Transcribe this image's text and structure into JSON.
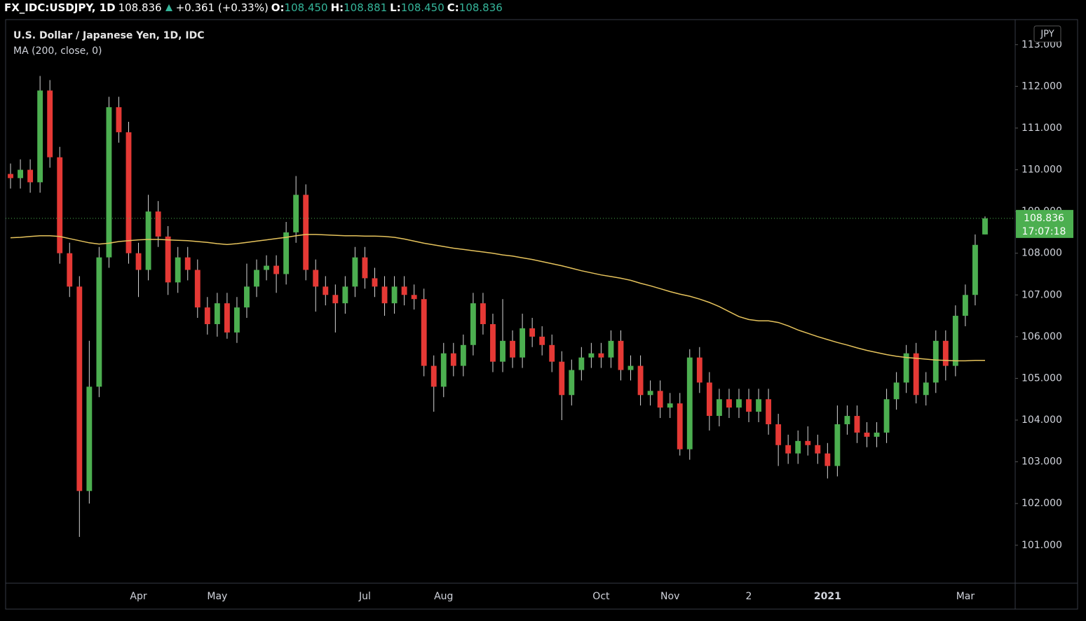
{
  "header": {
    "symbol": "FX_IDC:USDJPY, 1D",
    "last": "108.836",
    "change": "+0.361 (+0.33%)",
    "o_label": "O:",
    "o": "108.450",
    "h_label": "H:",
    "h": "108.881",
    "l_label": "L:",
    "l": "108.450",
    "c_label": "C:",
    "c": "108.836"
  },
  "chart_data": {
    "type": "candlestick",
    "title": "U.S. Dollar / Japanese Yen, 1D, IDC",
    "currency": "JPY",
    "categories": [
      null,
      null,
      null,
      null,
      null,
      null,
      null,
      null,
      null,
      null,
      null,
      null,
      null,
      "Apr",
      null,
      null,
      null,
      null,
      null,
      null,
      null,
      "May",
      null,
      null,
      null,
      null,
      null,
      null,
      null,
      null,
      null,
      null,
      null,
      null,
      null,
      null,
      "Jul",
      null,
      null,
      null,
      null,
      null,
      null,
      null,
      "Aug",
      null,
      null,
      null,
      null,
      null,
      null,
      null,
      null,
      null,
      null,
      null,
      null,
      null,
      null,
      null,
      "Oct",
      null,
      null,
      null,
      null,
      null,
      null,
      "Nov",
      null,
      null,
      null,
      null,
      null,
      null,
      null,
      "2",
      null,
      null,
      null,
      null,
      null,
      null,
      null,
      "2021",
      null,
      null,
      null,
      null,
      null,
      null,
      null,
      null,
      null,
      null,
      null,
      null,
      null,
      "Mar",
      null,
      null
    ],
    "open": [
      109.9,
      109.8,
      110.0,
      109.7,
      111.9,
      110.3,
      108.0,
      107.2,
      102.3,
      104.8,
      107.9,
      111.5,
      110.9,
      108.0,
      107.6,
      109.0,
      108.4,
      107.3,
      107.9,
      107.6,
      106.7,
      106.3,
      106.8,
      106.1,
      106.7,
      107.2,
      107.6,
      107.7,
      107.5,
      108.5,
      109.4,
      107.6,
      107.2,
      107.0,
      106.8,
      107.2,
      107.9,
      107.4,
      107.2,
      106.8,
      107.2,
      107.0,
      106.9,
      105.3,
      104.8,
      105.6,
      105.3,
      105.8,
      106.8,
      106.3,
      105.4,
      105.9,
      105.5,
      106.2,
      106.0,
      105.8,
      105.4,
      104.6,
      105.2,
      105.5,
      105.6,
      105.5,
      105.9,
      105.2,
      105.3,
      104.6,
      104.7,
      104.3,
      104.4,
      103.3,
      105.5,
      104.9,
      104.1,
      104.5,
      104.3,
      104.5,
      104.2,
      104.5,
      103.9,
      103.4,
      103.2,
      103.5,
      103.4,
      103.2,
      102.9,
      103.9,
      104.1,
      103.7,
      103.6,
      103.7,
      104.5,
      104.9,
      105.6,
      104.6,
      104.9,
      105.9,
      105.3,
      106.5,
      107.0,
      108.45
    ],
    "high": [
      110.15,
      110.25,
      110.25,
      112.25,
      112.15,
      110.55,
      108.25,
      107.45,
      105.9,
      108.15,
      111.75,
      111.75,
      111.15,
      108.25,
      109.4,
      109.25,
      108.65,
      108.15,
      108.15,
      107.85,
      106.95,
      107.05,
      107.05,
      106.95,
      107.75,
      107.85,
      107.95,
      107.95,
      108.75,
      109.85,
      109.65,
      107.85,
      107.45,
      107.25,
      107.45,
      108.15,
      108.15,
      107.65,
      107.45,
      107.45,
      107.45,
      107.25,
      107.15,
      105.55,
      105.85,
      105.85,
      106.05,
      107.05,
      107.05,
      106.55,
      106.9,
      106.15,
      106.55,
      106.45,
      106.25,
      106.05,
      105.65,
      105.45,
      105.75,
      105.85,
      105.85,
      106.15,
      106.15,
      105.55,
      105.55,
      104.95,
      104.95,
      104.65,
      104.65,
      105.7,
      105.75,
      105.15,
      104.75,
      104.75,
      104.75,
      104.75,
      104.75,
      104.75,
      104.15,
      103.65,
      103.75,
      103.85,
      103.65,
      103.45,
      104.35,
      104.35,
      104.35,
      103.95,
      103.95,
      104.75,
      105.15,
      105.8,
      105.85,
      105.15,
      106.15,
      106.15,
      106.75,
      107.25,
      108.45,
      108.881
    ],
    "low": [
      109.55,
      109.55,
      109.45,
      109.45,
      110.05,
      107.75,
      106.95,
      101.2,
      102.0,
      104.55,
      107.65,
      110.65,
      107.75,
      106.95,
      107.35,
      108.15,
      107.0,
      107.05,
      107.35,
      106.45,
      106.05,
      106.0,
      105.95,
      105.85,
      106.45,
      106.95,
      107.35,
      107.05,
      107.25,
      108.25,
      107.35,
      106.6,
      106.75,
      106.1,
      106.55,
      106.95,
      107.15,
      106.95,
      106.5,
      106.55,
      106.75,
      106.65,
      105.05,
      104.2,
      104.55,
      105.05,
      105.05,
      105.55,
      106.05,
      105.15,
      105.15,
      105.25,
      105.25,
      105.75,
      105.55,
      105.15,
      104.0,
      104.35,
      104.95,
      105.25,
      105.25,
      105.25,
      104.95,
      104.95,
      104.35,
      104.35,
      104.05,
      104.05,
      103.15,
      103.05,
      104.65,
      103.75,
      103.85,
      104.05,
      104.05,
      103.95,
      103.95,
      103.65,
      102.9,
      102.95,
      102.95,
      103.15,
      102.95,
      102.6,
      102.65,
      103.65,
      103.45,
      103.35,
      103.35,
      103.45,
      104.25,
      104.65,
      104.4,
      104.35,
      104.65,
      104.95,
      105.05,
      106.25,
      106.75,
      108.45
    ],
    "close": [
      109.8,
      110.0,
      109.7,
      111.9,
      110.3,
      108.0,
      107.2,
      102.3,
      104.8,
      107.9,
      111.5,
      110.9,
      108.0,
      107.6,
      109.0,
      108.4,
      107.3,
      107.9,
      107.6,
      106.7,
      106.3,
      106.8,
      106.1,
      106.7,
      107.2,
      107.6,
      107.7,
      107.5,
      108.5,
      109.4,
      107.6,
      107.2,
      107.0,
      106.8,
      107.2,
      107.9,
      107.4,
      107.2,
      106.8,
      107.2,
      107.0,
      106.9,
      105.3,
      104.8,
      105.6,
      105.3,
      105.8,
      106.8,
      106.3,
      105.4,
      105.9,
      105.5,
      106.2,
      106.0,
      105.8,
      105.4,
      104.6,
      105.2,
      105.5,
      105.6,
      105.5,
      105.9,
      105.2,
      105.3,
      104.6,
      104.7,
      104.3,
      104.4,
      103.3,
      105.5,
      104.9,
      104.1,
      104.5,
      104.3,
      104.5,
      104.2,
      104.5,
      103.9,
      103.4,
      103.2,
      103.5,
      103.4,
      103.2,
      102.9,
      103.9,
      104.1,
      103.7,
      103.6,
      103.7,
      104.5,
      104.9,
      105.6,
      104.6,
      104.9,
      105.9,
      105.3,
      106.5,
      107.0,
      108.2,
      108.836
    ],
    "up_color": "#4caf50",
    "down_color": "#e53935",
    "wick_color": "#d6d6d6",
    "ma": {
      "label": "MA (200, close, 0)",
      "color": "#e6c35c",
      "values": [
        108.37,
        108.38,
        108.4,
        108.42,
        108.42,
        108.4,
        108.35,
        108.3,
        108.25,
        108.22,
        108.24,
        108.28,
        108.3,
        108.32,
        108.33,
        108.33,
        108.32,
        108.31,
        108.3,
        108.28,
        108.26,
        108.23,
        108.21,
        108.23,
        108.26,
        108.29,
        108.32,
        108.35,
        108.38,
        108.42,
        108.45,
        108.45,
        108.44,
        108.43,
        108.42,
        108.42,
        108.41,
        108.41,
        108.4,
        108.38,
        108.34,
        108.29,
        108.24,
        108.2,
        108.16,
        108.12,
        108.09,
        108.06,
        108.03,
        108.0,
        107.96,
        107.93,
        107.89,
        107.85,
        107.8,
        107.75,
        107.7,
        107.64,
        107.58,
        107.53,
        107.48,
        107.44,
        107.4,
        107.35,
        107.28,
        107.22,
        107.15,
        107.08,
        107.02,
        106.97,
        106.9,
        106.82,
        106.72,
        106.6,
        106.48,
        106.41,
        106.38,
        106.38,
        106.34,
        106.26,
        106.16,
        106.08,
        106.0,
        105.93,
        105.86,
        105.8,
        105.73,
        105.67,
        105.62,
        105.57,
        105.53,
        105.5,
        105.48,
        105.46,
        105.44,
        105.43,
        105.42,
        105.42,
        105.43,
        105.43
      ]
    },
    "last_price_label": "108.836",
    "countdown": "17:07:18",
    "price_tag_color": "#4caf50",
    "ylim": [
      100.09,
      113.6
    ],
    "yticks": [
      {
        "value": 101,
        "label": "101.000"
      },
      {
        "value": 102,
        "label": "102.000"
      },
      {
        "value": 103,
        "label": "103.000"
      },
      {
        "value": 104,
        "label": "104.000"
      },
      {
        "value": 105,
        "label": "105.000"
      },
      {
        "value": 106,
        "label": "106.000"
      },
      {
        "value": 107,
        "label": "107.000"
      },
      {
        "value": 108,
        "label": "108.000"
      },
      {
        "value": 109,
        "label": "109.000"
      },
      {
        "value": 110,
        "label": "110.000"
      },
      {
        "value": 111,
        "label": "111.000"
      },
      {
        "value": 112,
        "label": "112.000"
      },
      {
        "value": 113,
        "label": "113.000"
      }
    ]
  }
}
